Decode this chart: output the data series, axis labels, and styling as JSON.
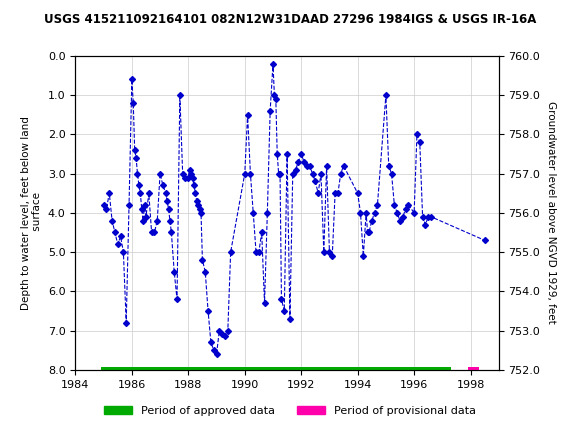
{
  "title": "USGS 415211092164101 082N12W31DAAD 27296 1984IGS & USGS IR-16A",
  "ylabel_left": "Depth to water level, feet below land\n surface",
  "ylabel_right": "Groundwater level above NGVD 1929, feet",
  "xlabel": "",
  "xlim": [
    1984,
    1999
  ],
  "ylim_left": [
    8.0,
    0.0
  ],
  "ylim_right": [
    752.0,
    760.0
  ],
  "xticks": [
    1984,
    1986,
    1988,
    1990,
    1992,
    1994,
    1996,
    1998
  ],
  "yticks_left": [
    0.0,
    1.0,
    2.0,
    3.0,
    4.0,
    5.0,
    6.0,
    7.0,
    8.0
  ],
  "yticks_right": [
    760.0,
    759.0,
    758.0,
    757.0,
    756.0,
    755.0,
    754.0,
    753.0,
    752.0
  ],
  "line_color": "#0000CC",
  "marker_color": "#0000CC",
  "approved_bar_color": "#00AA00",
  "provisional_bar_color": "#FF00AA",
  "approved_bar_start": 1984.9,
  "approved_bar_end": 1997.3,
  "provisional_bar_start": 1997.9,
  "provisional_bar_end": 1998.3,
  "header_bg_color": "#1a7a4a",
  "header_text_color": "#FFFFFF",
  "background_color": "#FFFFFF",
  "plot_bg_color": "#FFFFFF",
  "grid_color": "#CCCCCC",
  "x_data": [
    1985.0,
    1985.1,
    1985.2,
    1985.3,
    1985.4,
    1985.5,
    1985.6,
    1985.7,
    1985.8,
    1985.9,
    1986.0,
    1986.05,
    1986.1,
    1986.15,
    1986.2,
    1986.25,
    1986.3,
    1986.35,
    1986.4,
    1986.45,
    1986.5,
    1986.6,
    1986.7,
    1986.8,
    1986.9,
    1987.0,
    1987.1,
    1987.2,
    1987.25,
    1987.3,
    1987.35,
    1987.4,
    1987.5,
    1987.6,
    1987.7,
    1987.8,
    1987.9,
    1988.0,
    1988.05,
    1988.1,
    1988.15,
    1988.2,
    1988.25,
    1988.3,
    1988.35,
    1988.4,
    1988.45,
    1988.5,
    1988.6,
    1988.7,
    1988.8,
    1988.9,
    1989.0,
    1989.1,
    1989.2,
    1989.3,
    1989.4,
    1989.5,
    1990.0,
    1990.1,
    1990.2,
    1990.3,
    1990.4,
    1990.5,
    1990.6,
    1990.7,
    1990.8,
    1990.9,
    1991.0,
    1991.05,
    1991.1,
    1991.15,
    1991.2,
    1991.25,
    1991.3,
    1991.4,
    1991.5,
    1991.6,
    1991.7,
    1991.8,
    1991.9,
    1992.0,
    1992.1,
    1992.2,
    1992.3,
    1992.4,
    1992.5,
    1992.6,
    1992.7,
    1992.8,
    1992.9,
    1993.0,
    1993.1,
    1993.2,
    1993.3,
    1993.4,
    1993.5,
    1994.0,
    1994.1,
    1994.2,
    1994.3,
    1994.35,
    1994.4,
    1994.5,
    1994.6,
    1994.7,
    1995.0,
    1995.1,
    1995.2,
    1995.3,
    1995.4,
    1995.5,
    1995.6,
    1995.7,
    1995.8,
    1996.0,
    1996.1,
    1996.2,
    1996.3,
    1996.4,
    1996.5,
    1996.6,
    1998.5
  ],
  "y_data": [
    3.8,
    3.9,
    3.5,
    4.2,
    4.5,
    4.8,
    4.6,
    5.0,
    6.8,
    3.8,
    0.6,
    1.2,
    2.4,
    2.6,
    3.0,
    3.3,
    3.5,
    3.9,
    4.2,
    3.8,
    4.1,
    3.5,
    4.5,
    4.5,
    4.2,
    3.0,
    3.3,
    3.5,
    3.7,
    3.9,
    4.2,
    4.5,
    5.5,
    6.2,
    1.0,
    3.0,
    3.1,
    3.1,
    2.9,
    3.0,
    3.1,
    3.3,
    3.5,
    3.7,
    3.8,
    3.9,
    4.0,
    5.2,
    5.5,
    6.5,
    7.3,
    7.5,
    7.6,
    7.0,
    7.1,
    7.15,
    7.0,
    5.0,
    3.0,
    1.5,
    3.0,
    4.0,
    5.0,
    5.0,
    4.5,
    6.3,
    4.0,
    1.4,
    0.2,
    1.0,
    1.1,
    2.5,
    3.0,
    3.0,
    6.2,
    6.5,
    2.5,
    6.7,
    3.0,
    2.9,
    2.7,
    2.5,
    2.7,
    2.8,
    2.8,
    3.0,
    3.2,
    3.5,
    3.0,
    5.0,
    2.8,
    5.0,
    5.1,
    3.5,
    3.5,
    3.0,
    2.8,
    3.5,
    4.0,
    5.1,
    4.0,
    4.5,
    4.5,
    4.2,
    4.0,
    3.8,
    1.0,
    2.8,
    3.0,
    3.8,
    4.0,
    4.2,
    4.1,
    3.9,
    3.8,
    4.0,
    2.0,
    2.2,
    4.1,
    4.3,
    4.1,
    4.1,
    4.7
  ]
}
